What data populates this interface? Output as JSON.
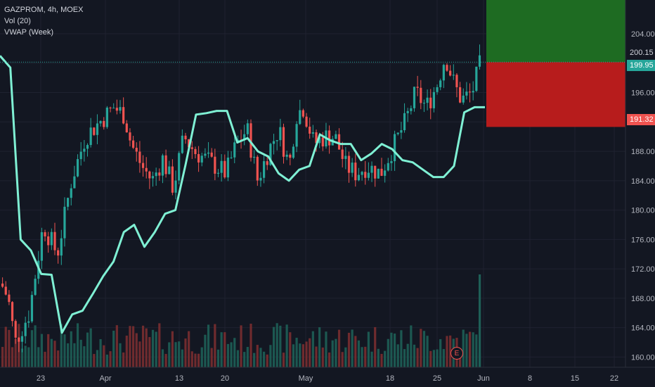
{
  "legend": {
    "symbol_line": "GAZPROM, 4h, MOEX",
    "vol_line": "Vol (20)",
    "vwap_line": "VWAP (Week)"
  },
  "colors": {
    "background": "#131722",
    "up": "#26a69a",
    "down": "#ef5350",
    "vwap": "#7ff0d4",
    "profit_zone": "#1e6b22",
    "loss_zone": "#b71c1c",
    "axis_text": "#b2b5be"
  },
  "price_flags": {
    "current_dotted": "200.15",
    "last": "199.95",
    "stop": "191.32"
  },
  "event_badge": "E",
  "chart_data": {
    "type": "candlestick",
    "symbol": "GAZPROM",
    "interval": "4h",
    "exchange": "MOEX",
    "y_ticks": [
      160,
      164,
      168,
      172,
      176,
      180,
      184,
      188,
      192,
      196,
      200,
      204
    ],
    "y_tick_labels": [
      "160.00",
      "164.00",
      "168.00",
      "172.00",
      "176.00",
      "180.00",
      "184.00",
      "188.00",
      "",
      "196.00",
      "",
      "204.00"
    ],
    "ylim": [
      158.6,
      208.6
    ],
    "x_ticks": [
      "23",
      "Apr",
      "13",
      "20",
      "May",
      "18",
      "25",
      "Jun",
      "8",
      "15",
      "22"
    ],
    "position_tool": {
      "entry": 200.15,
      "target": 209,
      "stop": 191.32
    },
    "last_price": 199.95,
    "vwap_week": [
      201,
      199.4,
      176,
      174.5,
      171.3,
      171.2,
      163.3,
      165.8,
      166.3,
      168.6,
      171,
      173,
      177,
      178,
      175,
      177,
      179.5,
      180,
      186.3,
      193,
      193.2,
      193.5,
      193.5,
      189.2,
      189.8,
      188,
      187.3,
      185,
      184,
      185.5,
      186,
      190.3,
      189.5,
      189,
      189,
      186.8,
      187.7,
      189,
      188.3,
      186.8,
      186.5,
      185.5,
      184.5,
      184.5,
      186,
      193.3,
      194,
      194
    ]
  }
}
